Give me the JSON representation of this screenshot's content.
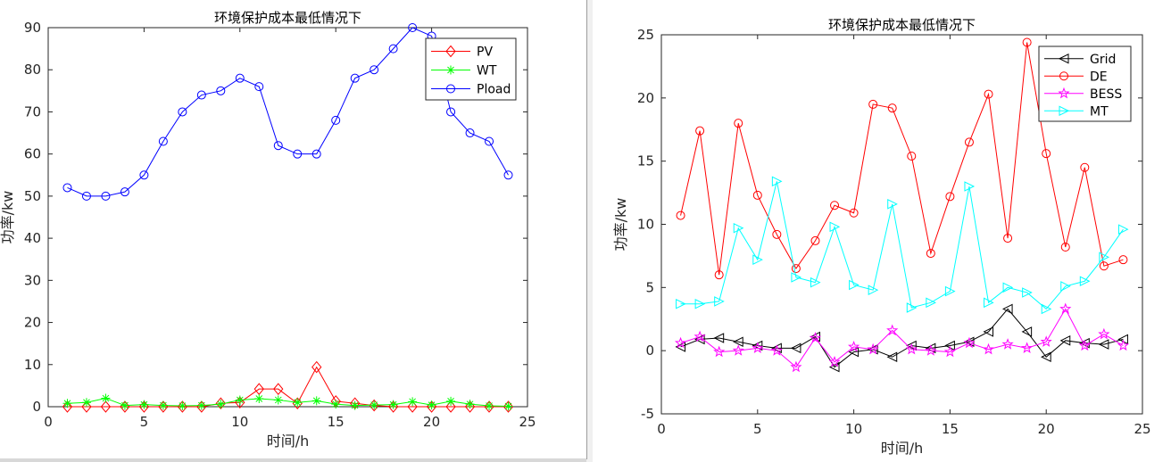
{
  "chart_data": [
    {
      "type": "line",
      "title": "环境保护成本最低情况下",
      "xlabel": "时间/h",
      "ylabel": "功率/kw",
      "xlim": [
        0,
        25
      ],
      "ylim": [
        0,
        90
      ],
      "xticks": [
        0,
        5,
        10,
        15,
        20,
        25
      ],
      "yticks": [
        0,
        10,
        20,
        30,
        40,
        50,
        60,
        70,
        80,
        90
      ],
      "grid": false,
      "legend_position": "top-right",
      "x": [
        1,
        2,
        3,
        4,
        5,
        6,
        7,
        8,
        9,
        10,
        11,
        12,
        13,
        14,
        15,
        16,
        17,
        18,
        19,
        20,
        21,
        22,
        23,
        24
      ],
      "series": [
        {
          "name": "PV",
          "color": "#ff0000",
          "marker": "diamond",
          "values": [
            0,
            0,
            0,
            0,
            0,
            0,
            0,
            0,
            0.8,
            1.0,
            4.2,
            4.2,
            0.8,
            9.4,
            1.3,
            0.8,
            0.3,
            0,
            0,
            0,
            0,
            0,
            0,
            0
          ]
        },
        {
          "name": "WT",
          "color": "#00ff00",
          "marker": "asterisk",
          "values": [
            0.8,
            1.0,
            2.0,
            0.3,
            0.5,
            0.3,
            0.2,
            0.3,
            0.6,
            1.6,
            1.9,
            1.6,
            1.0,
            1.4,
            0.6,
            0.3,
            0.4,
            0.5,
            1.2,
            0.4,
            1.3,
            0.6,
            0.2,
            0.1
          ]
        },
        {
          "name": "Pload",
          "color": "#0000ff",
          "marker": "circle",
          "values": [
            52,
            50,
            50,
            51,
            55,
            63,
            70,
            74,
            75,
            78,
            76,
            62,
            60,
            60,
            68,
            78,
            80,
            85,
            90,
            88,
            70,
            65,
            63,
            55
          ]
        }
      ]
    },
    {
      "type": "line",
      "title": "环境保护成本最低情况下",
      "xlabel": "时间/h",
      "ylabel": "功率/kw",
      "xlim": [
        0,
        25
      ],
      "ylim": [
        -5,
        25
      ],
      "xticks": [
        0,
        5,
        10,
        15,
        20,
        25
      ],
      "yticks": [
        -5,
        0,
        5,
        10,
        15,
        20,
        25
      ],
      "grid": false,
      "legend_position": "top-right",
      "x": [
        1,
        2,
        3,
        4,
        5,
        6,
        7,
        8,
        9,
        10,
        11,
        12,
        13,
        14,
        15,
        16,
        17,
        18,
        19,
        20,
        21,
        22,
        23,
        24
      ],
      "series": [
        {
          "name": "Grid",
          "color": "#000000",
          "marker": "triangle-left",
          "values": [
            0.3,
            0.9,
            1.0,
            0.7,
            0.4,
            0.2,
            0.2,
            1.1,
            -1.3,
            -0.1,
            0.1,
            -0.5,
            0.4,
            0.2,
            0.4,
            0.7,
            1.5,
            3.3,
            1.5,
            -0.5,
            0.8,
            0.6,
            0.5,
            0.9
          ]
        },
        {
          "name": "DE",
          "color": "#ff0000",
          "marker": "circle",
          "values": [
            10.7,
            17.4,
            6.0,
            18.0,
            12.3,
            9.2,
            6.5,
            8.7,
            11.5,
            10.9,
            19.5,
            19.2,
            15.4,
            7.7,
            12.2,
            16.5,
            20.3,
            8.9,
            24.4,
            15.6,
            8.2,
            14.5,
            6.7,
            7.2
          ]
        },
        {
          "name": "BESS",
          "color": "#ff00ff",
          "marker": "pentagram",
          "values": [
            0.6,
            1.1,
            -0.1,
            0.0,
            0.2,
            0.0,
            -1.3,
            1.0,
            -0.9,
            0.3,
            0.1,
            1.6,
            0.1,
            0.0,
            -0.1,
            0.6,
            0.1,
            0.5,
            0.2,
            0.7,
            3.3,
            0.4,
            1.3,
            0.4
          ]
        },
        {
          "name": "MT",
          "color": "#00ffff",
          "marker": "triangle-right",
          "values": [
            3.7,
            3.7,
            3.9,
            9.7,
            7.2,
            13.4,
            5.8,
            5.4,
            9.8,
            5.2,
            4.8,
            11.6,
            3.4,
            3.8,
            4.7,
            13.0,
            3.8,
            5.0,
            4.6,
            3.3,
            5.1,
            5.5,
            7.4,
            9.6
          ]
        }
      ]
    }
  ]
}
